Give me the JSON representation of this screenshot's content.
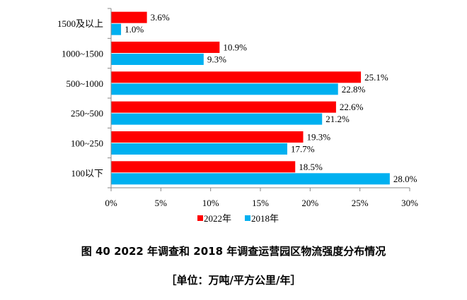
{
  "chart_data": {
    "type": "bar",
    "orientation": "horizontal",
    "categories": [
      "1500及以上",
      "1000~1500",
      "500~1000",
      "250~500",
      "100~250",
      "100以下"
    ],
    "series": [
      {
        "name": "2022年",
        "color": "#ff0000",
        "values": [
          3.6,
          10.9,
          25.1,
          22.6,
          19.3,
          18.5
        ],
        "labels": [
          "3.6%",
          "10.9%",
          "25.1%",
          "22.6%",
          "19.3%",
          "18.5%"
        ]
      },
      {
        "name": "2018年",
        "color": "#00b0f0",
        "values": [
          1.0,
          9.3,
          22.8,
          21.2,
          17.7,
          28.0
        ],
        "labels": [
          "1.0%",
          "9.3%",
          "22.8%",
          "21.2%",
          "17.7%",
          "28.0%"
        ]
      }
    ],
    "xlim": [
      0,
      30
    ],
    "xticks": [
      0,
      5,
      10,
      15,
      20,
      25,
      30
    ],
    "xtick_labels": [
      "0%",
      "5%",
      "10%",
      "15%",
      "20%",
      "25%",
      "30%"
    ],
    "legend_position": "bottom",
    "grid": false
  },
  "caption": {
    "title": "图 40 2022 年调查和 2018 年调查运营园区物流强度分布情况",
    "unit": "［单位：万吨/平方公里/年］"
  }
}
